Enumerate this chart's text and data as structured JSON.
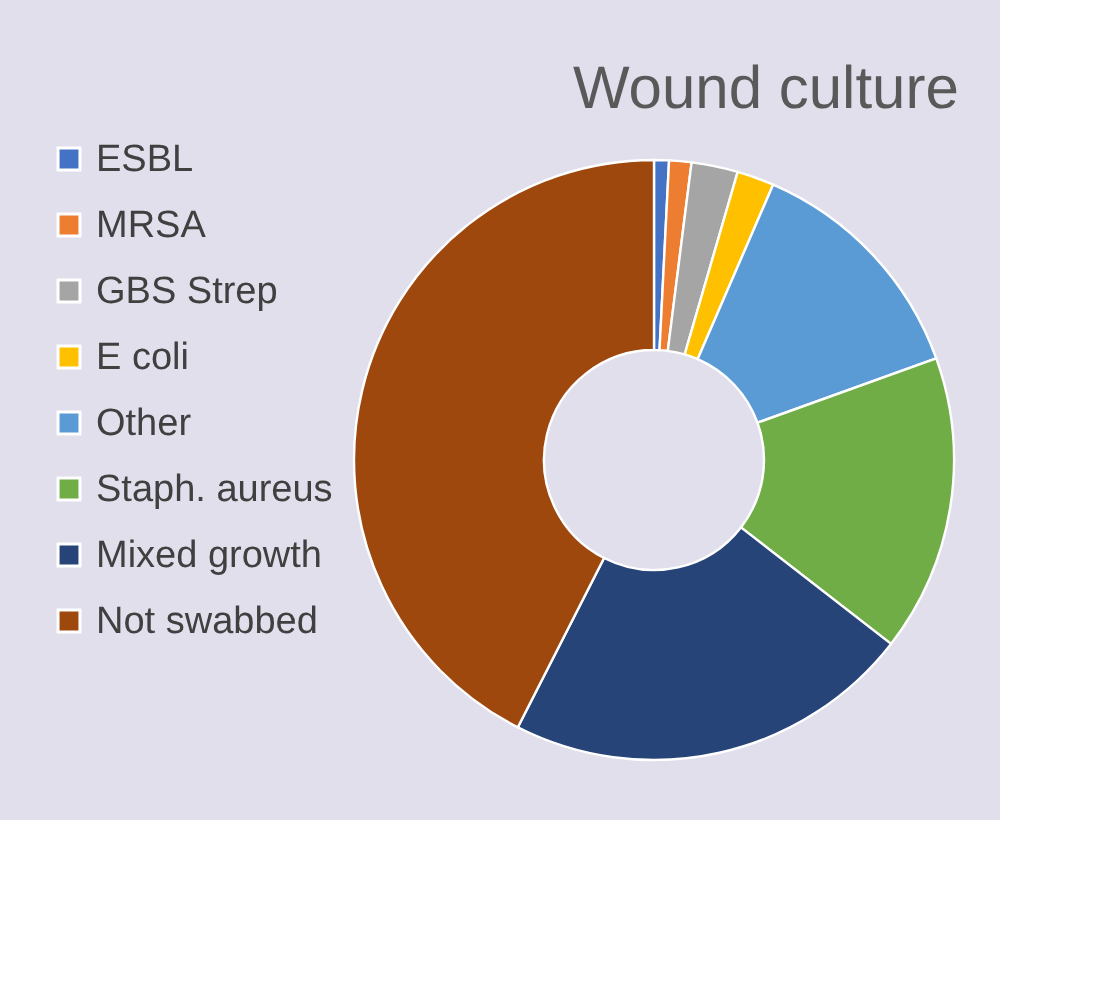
{
  "chart_data": {
    "type": "donut",
    "title": "Wound culture",
    "categories": [
      "ESBL",
      "MRSA",
      "GBS Strep",
      "E coli",
      "Other",
      "Staph. aureus",
      "Mixed growth",
      "Not swabbed"
    ],
    "values": [
      0.8,
      1.2,
      2.5,
      2,
      13,
      16,
      22,
      42.5
    ],
    "colors": [
      "#4472c4",
      "#ed7d31",
      "#a5a5a5",
      "#ffc000",
      "#5b9bd5",
      "#70ad47",
      "#264478",
      "#9e480e"
    ],
    "legend": "left"
  }
}
